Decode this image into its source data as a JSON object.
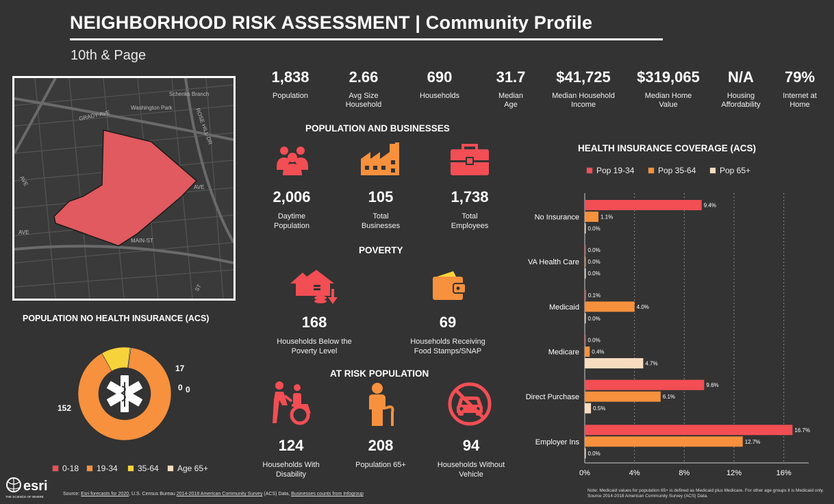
{
  "header": {
    "title": "NEIGHBORHOOD RISK ASSESSMENT  |  Community Profile",
    "subtitle": "10th & Page"
  },
  "map": {
    "labels": [
      "Schenks Branch",
      "Washington Park",
      "GRADY-AVE",
      "ROSE HILL-DR",
      "AVE",
      "AVE",
      "MAIN-ST",
      "AVE",
      "ST"
    ]
  },
  "top_stats": [
    {
      "value": "1,838",
      "label": "Population"
    },
    {
      "value": "2.66",
      "label": "Avg Size Household"
    },
    {
      "value": "690",
      "label": "Households"
    },
    {
      "value": "31.7",
      "label": "Median Age"
    },
    {
      "value": "$41,725",
      "label": "Median Household Income"
    },
    {
      "value": "$319,065",
      "label": "Median Home Value"
    },
    {
      "value": "N/A",
      "label": "Housing Affordability"
    },
    {
      "value": "79%",
      "label": "Internet at Home"
    }
  ],
  "sections": {
    "pop_business": "POPULATION AND BUSINESSES",
    "poverty": "POVERTY",
    "at_risk": "AT RISK POPULATION",
    "no_insurance": "POPULATION NO HEALTH INSURANCE (ACS)",
    "coverage": "HEALTH INSURANCE COVERAGE (ACS)"
  },
  "pop_business": [
    {
      "icon": "people-icon",
      "value": "2,006",
      "label": "Daytime Population"
    },
    {
      "icon": "factory-icon",
      "value": "105",
      "label": "Total Businesses"
    },
    {
      "icon": "briefcase-icon",
      "value": "1,738",
      "label": "Total Employees"
    }
  ],
  "poverty": [
    {
      "icon": "house-coins-icon",
      "value": "168",
      "label": "Households Below the Poverty Level"
    },
    {
      "icon": "wallet-icon",
      "value": "69",
      "label": "Households Receiving Food Stamps/SNAP"
    }
  ],
  "at_risk": [
    {
      "icon": "wheelchair-icon",
      "value": "124",
      "label": "Households With Disability"
    },
    {
      "icon": "elderly-icon",
      "value": "208",
      "label": "Population 65+"
    },
    {
      "icon": "no-car-icon",
      "value": "94",
      "label": "Households Without Vehicle"
    }
  ],
  "colors": {
    "red": "#f24e54",
    "orange": "#f7913d",
    "yellow": "#f7d33b",
    "cream": "#f8dcc0",
    "bg": "#333333"
  },
  "chart_data": [
    {
      "type": "pie",
      "title": "POPULATION NO HEALTH INSURANCE (ACS)",
      "categories": [
        "0-18",
        "19-34",
        "35-64",
        "Age 65+"
      ],
      "values": [
        0,
        152,
        17,
        0
      ],
      "data_labels": [
        "0",
        "152",
        "17",
        "0"
      ],
      "colors": [
        "#f24e54",
        "#f7913d",
        "#f7d33b",
        "#f8dcc0"
      ],
      "legend": "bottom"
    },
    {
      "type": "bar",
      "orientation": "horizontal",
      "title": "HEALTH INSURANCE COVERAGE (ACS)",
      "categories": [
        "No Insurance",
        "VA Health Care",
        "Medicaid",
        "Medicare",
        "Direct Purchase",
        "Employer Ins"
      ],
      "series": [
        {
          "name": "Pop 19-34",
          "color": "#f24e54",
          "values": [
            9.4,
            0.0,
            0.1,
            0.0,
            9.6,
            16.7
          ]
        },
        {
          "name": "Pop 35-64",
          "color": "#f7913d",
          "values": [
            1.1,
            0.0,
            4.0,
            0.4,
            6.1,
            12.7
          ]
        },
        {
          "name": "Pop 65+",
          "color": "#f8dcc0",
          "values": [
            0.0,
            0.0,
            0.0,
            4.7,
            0.5,
            0.0
          ]
        }
      ],
      "xlim": [
        0,
        18
      ],
      "xticks": [
        0,
        4,
        8,
        12,
        16
      ],
      "xtick_labels": [
        "0%",
        "4%",
        "8%",
        "12%",
        "16%"
      ],
      "grid": true,
      "legend": "top"
    }
  ],
  "footer": {
    "source_prefix": "Source: ",
    "source_link1": "Esri forecasts for  2020",
    "source_mid1": ", U.S. Census Bureau  ",
    "source_link2": "2014-2018 American Community Survey",
    "source_mid2": " (ACS) Data, ",
    "source_link3": "Businesses counts from Infogroup",
    "note": "Note: Medicaid values for population 65+ is defined as Medicaid plus Medicare. For other age groups it is Medicaid only.  Source 2014-2018 American Community Survey (ACS) Data.",
    "logo": "esri",
    "logo_tagline": "THE SCIENCE OF WHERE"
  }
}
